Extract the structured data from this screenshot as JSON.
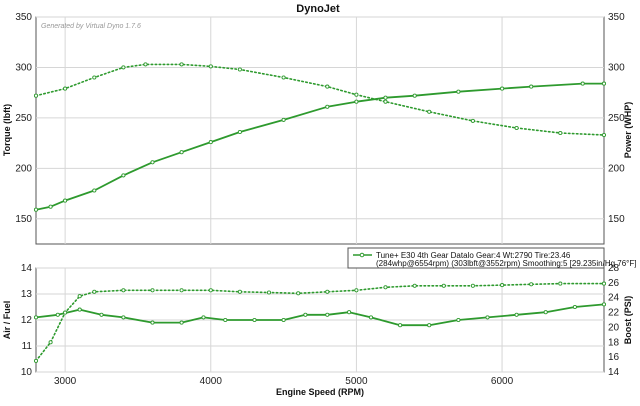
{
  "chart_data": [
    {
      "type": "line",
      "title": "DynoJet",
      "watermark": "Generated by Virtual Dyno 1.7.6",
      "ylabel": "Torque (lbft)",
      "y2label": "Power (WHP)",
      "xlim": [
        2800,
        6700
      ],
      "ylim": [
        125,
        350
      ],
      "y2lim": [
        125,
        350
      ],
      "yticks": [
        "150",
        "200",
        "250",
        "300",
        "350"
      ],
      "y2ticks": [
        "150",
        "200",
        "250",
        "300",
        "350"
      ],
      "grid": true,
      "legend": {
        "position": "bottom-right",
        "line1": "Tune+ E30 4th Gear Datalo Gear:4 Wt:2790 Tire:23.46",
        "line2": "(284whp@6554rpm) (303lbft@3552rpm) Smoothing:5 [29.235in/Hg 76°F]"
      },
      "series": [
        {
          "style": "dotted",
          "x": [
            2800,
            3000,
            3200,
            3400,
            3552,
            3800,
            4000,
            4200,
            4500,
            4800,
            5000,
            5200,
            5500,
            5800,
            6100,
            6400,
            6700
          ],
          "y": [
            272,
            279,
            290,
            300,
            303,
            303,
            301,
            298,
            290,
            281,
            273,
            266,
            256,
            247,
            240,
            235,
            233
          ]
        },
        {
          "style": "solid",
          "x": [
            2800,
            2900,
            3000,
            3200,
            3400,
            3600,
            3800,
            4000,
            4200,
            4500,
            4800,
            5000,
            5200,
            5400,
            5700,
            6000,
            6200,
            6554,
            6700
          ],
          "y": [
            159,
            162,
            168,
            178,
            193,
            206,
            216,
            226,
            236,
            248,
            261,
            266,
            270,
            272,
            276,
            279,
            281,
            284,
            284
          ]
        }
      ]
    },
    {
      "type": "line",
      "xlabel": "Engine Speed (RPM)",
      "ylabel": "Air / Fuel",
      "y2label": "Boost (PSI)",
      "xlim": [
        2800,
        6700
      ],
      "ylim": [
        10,
        14
      ],
      "y2lim": [
        14,
        28
      ],
      "xticks": [
        "3000",
        "4000",
        "5000",
        "6000"
      ],
      "yticks": [
        "10",
        "11",
        "12",
        "13",
        "14"
      ],
      "y2ticks": [
        "14",
        "16",
        "18",
        "20",
        "22",
        "24",
        "26",
        "28"
      ],
      "grid": true,
      "series": [
        {
          "style": "solid",
          "x": [
            2800,
            2950,
            3100,
            3250,
            3400,
            3600,
            3800,
            3950,
            4100,
            4300,
            4500,
            4650,
            4800,
            4950,
            5100,
            5300,
            5500,
            5700,
            5900,
            6100,
            6300,
            6500,
            6700
          ],
          "y": [
            12.1,
            12.2,
            12.4,
            12.2,
            12.1,
            11.9,
            11.9,
            12.1,
            12.0,
            12.0,
            12.0,
            12.2,
            12.2,
            12.3,
            12.1,
            11.8,
            11.8,
            12.0,
            12.1,
            12.2,
            12.3,
            12.5,
            12.6
          ]
        },
        {
          "style": "dotted",
          "x": [
            2800,
            2900,
            3000,
            3100,
            3200,
            3400,
            3600,
            3800,
            4000,
            4200,
            4400,
            4600,
            4800,
            5000,
            5200,
            5400,
            5600,
            5800,
            6000,
            6200,
            6400,
            6700
          ],
          "y": [
            15.5,
            18,
            22,
            24.2,
            24.8,
            25,
            25,
            25,
            25,
            24.8,
            24.7,
            24.6,
            24.8,
            25.0,
            25.4,
            25.6,
            25.6,
            25.6,
            25.7,
            25.8,
            25.9,
            25.9
          ]
        }
      ]
    }
  ]
}
